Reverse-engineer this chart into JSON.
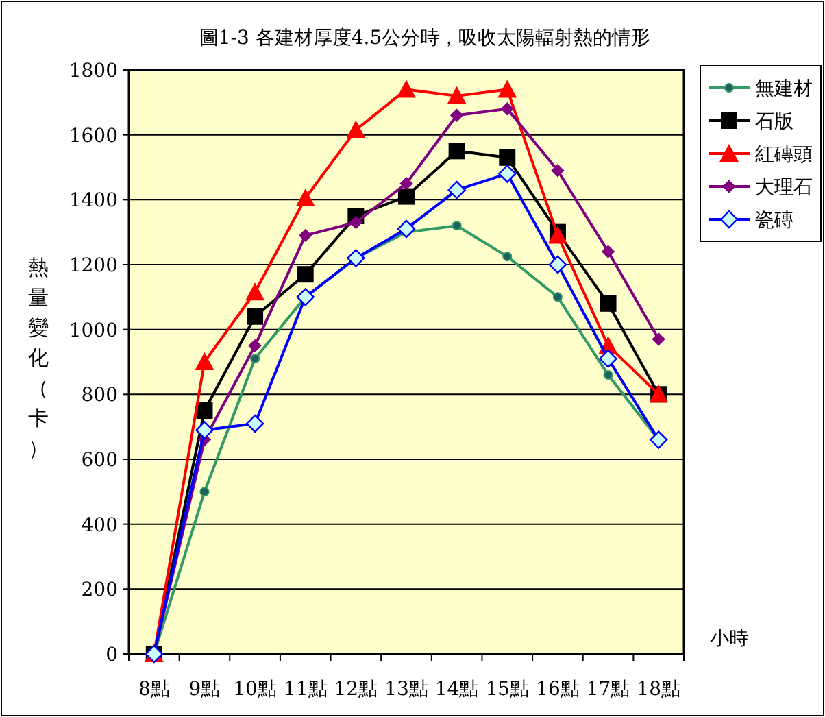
{
  "chart_data": {
    "type": "line",
    "title": "圖1-3  各建材厚度4.5公分時，吸收太陽輻射熱的情形",
    "xlabel": "小時",
    "ylabel": "熱量變化（卡）",
    "categories": [
      "8點",
      "9點",
      "10點",
      "11點",
      "12點",
      "13點",
      "14點",
      "15點",
      "16點",
      "17點",
      "18點"
    ],
    "ylim": [
      0,
      1800
    ],
    "yticks": [
      0,
      200,
      400,
      600,
      800,
      1000,
      1200,
      1400,
      1600,
      1800
    ],
    "grid": "y",
    "legend": "top right",
    "series": [
      {
        "name": "無建材",
        "color": "#339966",
        "marker": "circle",
        "values": [
          0,
          500,
          910,
          1100,
          1220,
          1300,
          1320,
          1225,
          1100,
          860,
          660
        ]
      },
      {
        "name": "石版",
        "color": "#000000",
        "marker": "square",
        "values": [
          0,
          750,
          1040,
          1170,
          1350,
          1410,
          1550,
          1530,
          1300,
          1080,
          800
        ]
      },
      {
        "name": "紅磚頭",
        "color": "#ff0000",
        "marker": "triangle",
        "values": [
          0,
          900,
          1115,
          1405,
          1615,
          1740,
          1720,
          1740,
          1290,
          950,
          800
        ]
      },
      {
        "name": "大理石",
        "color": "#800080",
        "marker": "diamond",
        "values": [
          0,
          660,
          950,
          1290,
          1330,
          1450,
          1660,
          1680,
          1490,
          1240,
          970
        ]
      },
      {
        "name": "瓷磚",
        "color": "#0000ff",
        "marker": "diamond",
        "values": [
          0,
          690,
          710,
          1100,
          1220,
          1310,
          1430,
          1480,
          1200,
          910,
          660
        ]
      }
    ]
  }
}
